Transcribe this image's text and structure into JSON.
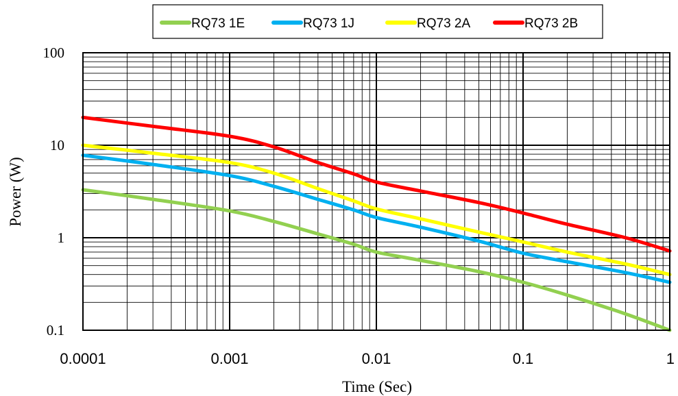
{
  "chart_data": {
    "type": "line",
    "xlabel": "Time (Sec)",
    "ylabel": "Power (W)",
    "xscale": "log",
    "yscale": "log",
    "xlim": [
      0.0001,
      1
    ],
    "ylim": [
      0.1,
      100
    ],
    "x_ticks": [
      0.0001,
      0.001,
      0.01,
      0.1,
      1
    ],
    "x_tick_labels": [
      "0.0001",
      "0.001",
      "0.01",
      "0.1",
      "1"
    ],
    "y_ticks": [
      0.1,
      1,
      10,
      100
    ],
    "y_tick_labels": [
      "0.1",
      "1",
      "10",
      "100"
    ],
    "grid": true,
    "legend_position": "top",
    "series": [
      {
        "name": "RQ73 1E",
        "color": "#92d050",
        "points": [
          [
            0.0001,
            3.3
          ],
          [
            0.0003,
            2.6
          ],
          [
            0.001,
            1.95
          ],
          [
            0.002,
            1.5
          ],
          [
            0.004,
            1.1
          ],
          [
            0.007,
            0.85
          ],
          [
            0.01,
            0.7
          ],
          [
            0.02,
            0.57
          ],
          [
            0.05,
            0.43
          ],
          [
            0.1,
            0.33
          ],
          [
            0.2,
            0.24
          ],
          [
            0.5,
            0.15
          ],
          [
            1,
            0.1
          ]
        ]
      },
      {
        "name": "RQ73 1J",
        "color": "#00b0f0",
        "points": [
          [
            0.0001,
            7.8
          ],
          [
            0.0003,
            6.2
          ],
          [
            0.001,
            4.7
          ],
          [
            0.002,
            3.6
          ],
          [
            0.004,
            2.6
          ],
          [
            0.007,
            2.0
          ],
          [
            0.01,
            1.65
          ],
          [
            0.02,
            1.3
          ],
          [
            0.05,
            0.92
          ],
          [
            0.1,
            0.68
          ],
          [
            0.2,
            0.55
          ],
          [
            0.5,
            0.42
          ],
          [
            1,
            0.33
          ]
        ]
      },
      {
        "name": "RQ73 2A",
        "color": "#ffff00",
        "points": [
          [
            0.0001,
            10
          ],
          [
            0.0003,
            8.2
          ],
          [
            0.001,
            6.5
          ],
          [
            0.002,
            5.0
          ],
          [
            0.004,
            3.4
          ],
          [
            0.007,
            2.5
          ],
          [
            0.01,
            2.05
          ],
          [
            0.02,
            1.6
          ],
          [
            0.05,
            1.15
          ],
          [
            0.1,
            0.9
          ],
          [
            0.2,
            0.7
          ],
          [
            0.5,
            0.52
          ],
          [
            1,
            0.4
          ]
        ]
      },
      {
        "name": "RQ73 2B",
        "color": "#ff0000",
        "points": [
          [
            0.0001,
            20
          ],
          [
            0.0003,
            16
          ],
          [
            0.001,
            12.5
          ],
          [
            0.002,
            9.6
          ],
          [
            0.004,
            6.5
          ],
          [
            0.007,
            4.9
          ],
          [
            0.01,
            4.0
          ],
          [
            0.02,
            3.2
          ],
          [
            0.05,
            2.4
          ],
          [
            0.1,
            1.85
          ],
          [
            0.2,
            1.4
          ],
          [
            0.5,
            1.0
          ],
          [
            1,
            0.72
          ]
        ]
      }
    ]
  }
}
